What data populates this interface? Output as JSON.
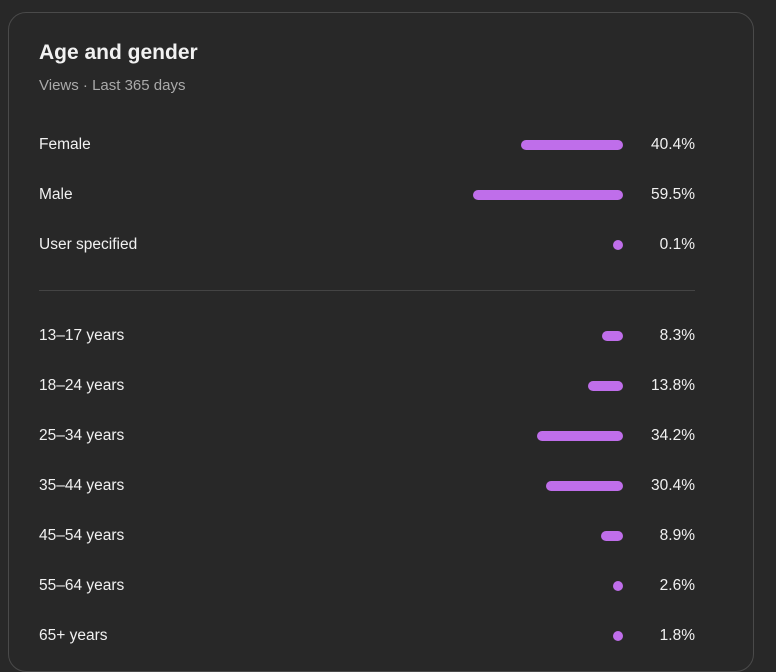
{
  "card": {
    "title": "Age and gender",
    "subtitle": "Views · Last 365 days"
  },
  "gender": [
    {
      "label": "Female",
      "value": 40.4,
      "display": "40.4%"
    },
    {
      "label": "Male",
      "value": 59.5,
      "display": "59.5%"
    },
    {
      "label": "User specified",
      "value": 0.1,
      "display": "0.1%"
    }
  ],
  "age": [
    {
      "label": "13–17 years",
      "value": 8.3,
      "display": "8.3%"
    },
    {
      "label": "18–24 years",
      "value": 13.8,
      "display": "13.8%"
    },
    {
      "label": "25–34 years",
      "value": 34.2,
      "display": "34.2%"
    },
    {
      "label": "35–44 years",
      "value": 30.4,
      "display": "30.4%"
    },
    {
      "label": "45–54 years",
      "value": 8.9,
      "display": "8.9%"
    },
    {
      "label": "55–64 years",
      "value": 2.6,
      "display": "2.6%"
    },
    {
      "label": "65+ years",
      "value": 1.8,
      "display": "1.8%"
    }
  ],
  "colors": {
    "bar": "#bf6eea",
    "background": "#282828",
    "border": "#4a4a4a",
    "text": "#f1f1f1",
    "muted": "#aaaaaa"
  }
}
